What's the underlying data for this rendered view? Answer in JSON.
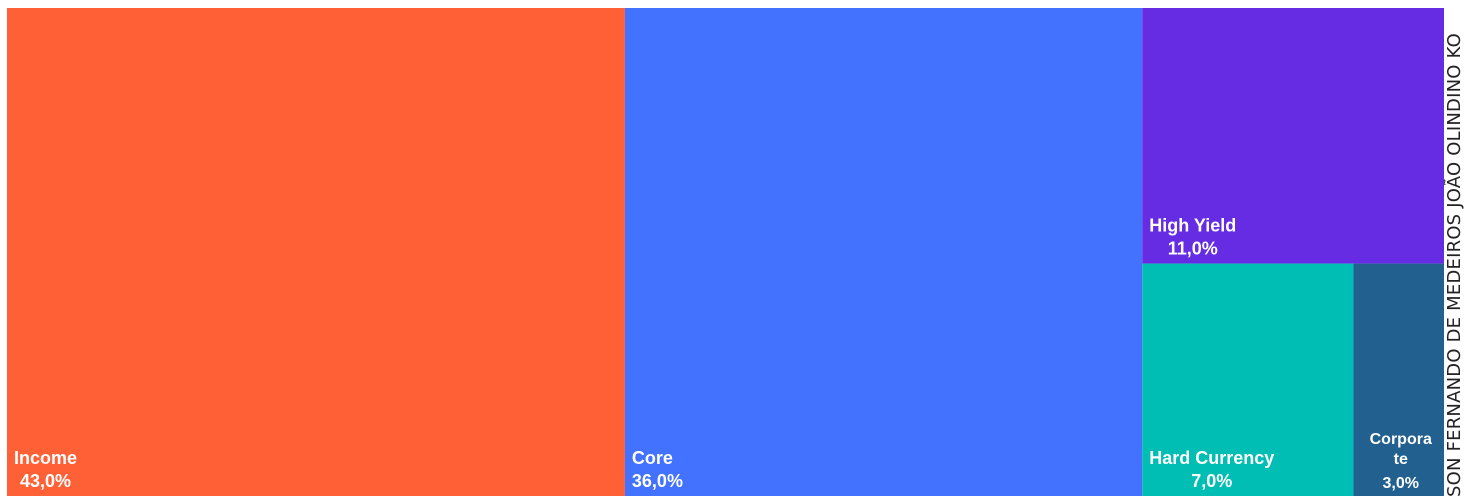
{
  "chart_data": {
    "type": "treemap",
    "items": [
      {
        "name": "Income",
        "value": 43.0,
        "value_label": "43,0%",
        "color": "#FF6035"
      },
      {
        "name": "Core",
        "value": 36.0,
        "value_label": "36,0%",
        "color": "#4272FF"
      },
      {
        "name": "High Yield",
        "value": 11.0,
        "value_label": "11,0%",
        "color": "#652CE3"
      },
      {
        "name": "Hard Currency",
        "value": 7.0,
        "value_label": "7,0%",
        "color": "#00BEB3"
      },
      {
        "name": "Corporate",
        "name_lines": [
          "Corpora",
          "te"
        ],
        "value": 3.0,
        "value_label": "3,0%",
        "color": "#226090"
      }
    ]
  },
  "watermark": {
    "text": "SON FERNANDO DE MEDEIROS  JOÃO OLINDINO KO"
  }
}
